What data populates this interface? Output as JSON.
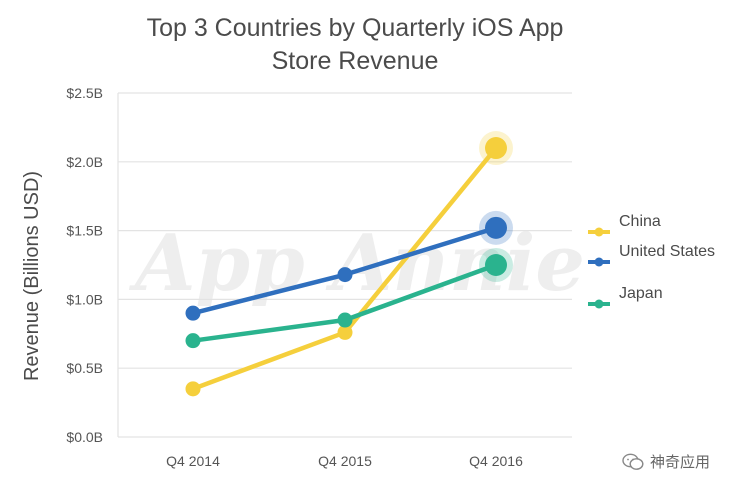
{
  "chart_data": {
    "type": "line",
    "title_line1": "Top 3 Countries by Quarterly iOS App",
    "title_line2": "Store Revenue",
    "xlabel": "",
    "ylabel": "Revenue (Billions USD)",
    "categories": [
      "Q4 2014",
      "Q4 2015",
      "Q4 2016"
    ],
    "ylim": [
      0,
      2.5
    ],
    "yticks": [
      0,
      0.5,
      1.0,
      1.5,
      2.0,
      2.5
    ],
    "ytick_labels": [
      "$0.0B",
      "$0.5B",
      "$1.0B",
      "$1.5B",
      "$2.0B",
      "$2.5B"
    ],
    "grid": true,
    "legend_position": "right",
    "series": [
      {
        "name": "China",
        "values": [
          0.35,
          0.76,
          2.1
        ],
        "color": "#f5cf3c"
      },
      {
        "name": "United States",
        "values": [
          0.9,
          1.18,
          1.52
        ],
        "color": "#2f6fbe"
      },
      {
        "name": "Japan",
        "values": [
          0.7,
          0.85,
          1.25
        ],
        "color": "#2ab38e"
      }
    ],
    "background_watermark": "App Annie"
  },
  "footer": {
    "account_name": "神奇应用",
    "icon": "wechat-icon"
  }
}
